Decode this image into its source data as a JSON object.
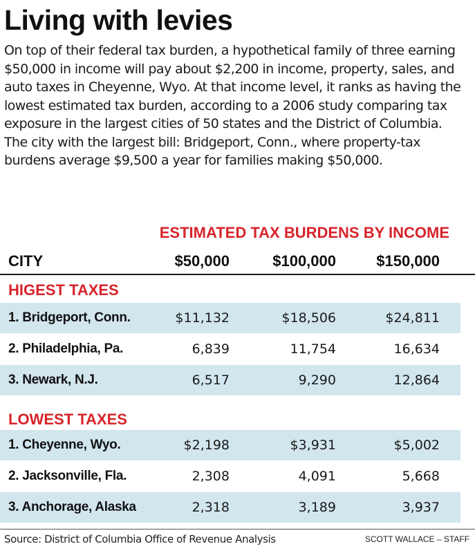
{
  "title": "Living with levies",
  "intro": "On top of their federal tax burden, a hypothetical family of three earning $50,000 in income will pay about $2,200 in income, property, sales, and auto taxes in Cheyenne, Wyo. At that income level, it ranks as having the lowest estimated tax burden, according to a 2006 study comparing tax exposure in the largest cities of 50 states and the District of Columbia. The city with the largest bill: Bridgeport, Conn., where property-tax burdens average $9,500 a year for families making $50,000.",
  "table": {
    "title": "ESTIMATED TAX BURDENS BY INCOME",
    "columns": [
      "CITY",
      "$50,000",
      "$100,000",
      "$150,000"
    ],
    "sections": [
      {
        "label": "HIGEST TAXES",
        "rows": [
          {
            "city": "1. Bridgeport, Conn.",
            "v50": "$11,132",
            "v100": "$18,506",
            "v150": "$24,811"
          },
          {
            "city": "2. Philadelphia, Pa.",
            "v50": "6,839",
            "v100": "11,754",
            "v150": "16,634"
          },
          {
            "city": "3. Newark, N.J.",
            "v50": "6,517",
            "v100": "9,290",
            "v150": "12,864"
          }
        ]
      },
      {
        "label": "LOWEST TAXES",
        "rows": [
          {
            "city": "1. Cheyenne, Wyo.",
            "v50": "$2,198",
            "v100": "$3,931",
            "v150": "$5,002"
          },
          {
            "city": "2. Jacksonville, Fla.",
            "v50": "2,308",
            "v100": "4,091",
            "v150": "5,668"
          },
          {
            "city": "3. Anchorage, Alaska",
            "v50": "2,318",
            "v100": "3,189",
            "v150": "3,937"
          }
        ]
      }
    ]
  },
  "source": "Source: District of Columbia Office of Revenue Analysis",
  "credit": "SCOTT WALLACE – STAFF",
  "colors": {
    "accent_red": "#d8232a",
    "row_shade": "#d2e6ee",
    "text": "#1a1a1a"
  }
}
